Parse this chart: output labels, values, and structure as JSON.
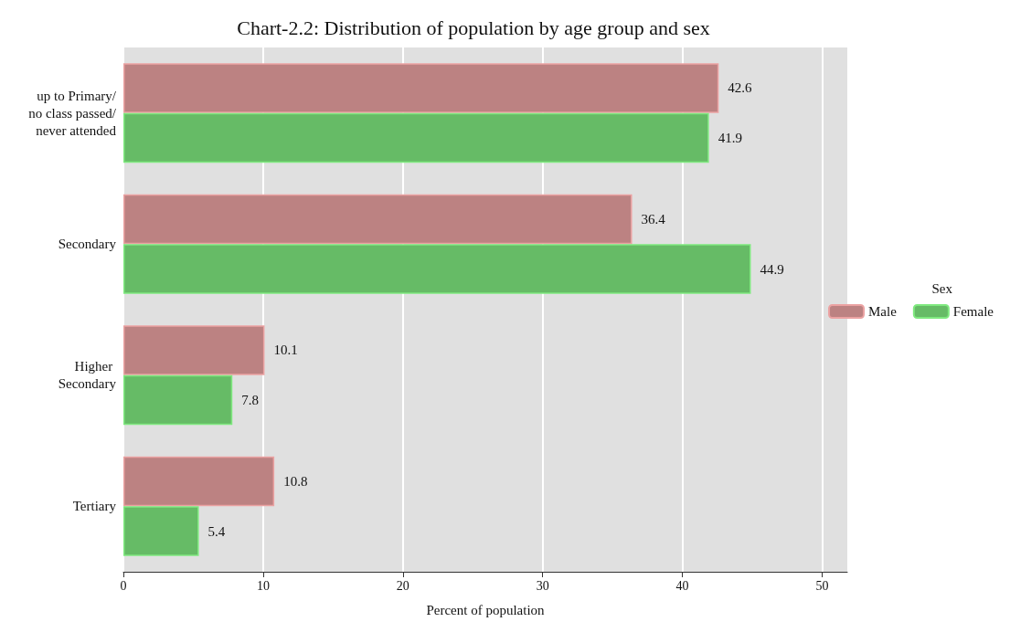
{
  "chart_data": {
    "type": "bar",
    "orientation": "horizontal",
    "title": "Chart-2.2: Distribution of population by age group and sex",
    "xlabel": "Percent of population",
    "legend_title": "Sex",
    "categories": [
      "up to Primary/no class passed/never attended",
      "Secondary",
      "Higher Secondary",
      "Tertiary"
    ],
    "series": [
      {
        "name": "Male",
        "color": "#bc8282",
        "values": [
          42.6,
          36.4,
          10.1,
          10.8
        ]
      },
      {
        "name": "Female",
        "color": "#66bb66",
        "values": [
          41.9,
          44.9,
          7.8,
          5.4
        ]
      }
    ],
    "xlim": [
      0,
      51.8
    ],
    "xticks": [
      0,
      10,
      20,
      30,
      40,
      50
    ],
    "grid": "x",
    "legend": "right",
    "data_labels": true
  }
}
